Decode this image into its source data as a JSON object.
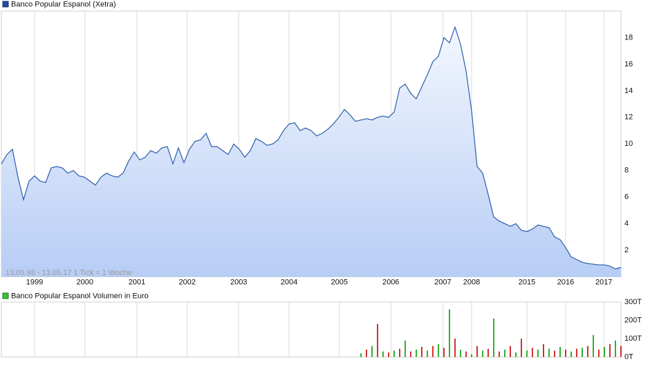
{
  "chart_data": [
    {
      "type": "area",
      "title": "Banco Popular Espanol (Xetra)",
      "annotation": "13.05.98 - 13.05.17   1 Tick = 1 Woche",
      "color": "#2a5caa",
      "xlim": [
        0,
        112
      ],
      "xticks": [
        {
          "value": 6,
          "label": "1999"
        },
        {
          "value": 15.1,
          "label": "2000"
        },
        {
          "value": 24.5,
          "label": "2001"
        },
        {
          "value": 33.6,
          "label": "2002"
        },
        {
          "value": 42.9,
          "label": "2003"
        },
        {
          "value": 52,
          "label": "2004"
        },
        {
          "value": 61.1,
          "label": "2005"
        },
        {
          "value": 70.4,
          "label": "2006"
        },
        {
          "value": 79.8,
          "label": "2007"
        },
        {
          "value": 85,
          "label": "2008"
        },
        {
          "value": 95,
          "label": "2015"
        },
        {
          "value": 102,
          "label": "2016"
        },
        {
          "value": 108.9,
          "label": "2017"
        }
      ],
      "ylim": [
        0,
        20
      ],
      "yticks": [
        2,
        4,
        6,
        8,
        10,
        12,
        14,
        16,
        18
      ],
      "grid": true,
      "values": [
        8.5,
        9.2,
        9.6,
        7.5,
        5.8,
        7.2,
        7.6,
        7.2,
        7.1,
        8.2,
        8.3,
        8.2,
        7.8,
        8.0,
        7.6,
        7.5,
        7.2,
        6.9,
        7.5,
        7.8,
        7.6,
        7.5,
        7.8,
        8.7,
        9.4,
        8.8,
        9.0,
        9.5,
        9.3,
        9.7,
        9.8,
        8.5,
        9.7,
        8.6,
        9.6,
        10.2,
        10.3,
        10.8,
        9.8,
        9.8,
        9.5,
        9.2,
        10.0,
        9.6,
        9.0,
        9.5,
        10.4,
        10.2,
        9.9,
        10.0,
        10.3,
        11.0,
        11.5,
        11.6,
        11.0,
        11.2,
        11.0,
        10.6,
        10.8,
        11.1,
        11.5,
        12.0,
        12.6,
        12.2,
        11.7,
        11.8,
        11.9,
        11.8,
        12.0,
        12.1,
        12.0,
        12.4,
        14.2,
        14.5,
        13.8,
        13.4,
        14.3,
        15.2,
        16.2,
        16.6,
        18.0,
        17.6,
        18.8,
        17.5,
        15.5,
        12.5,
        8.3,
        7.8,
        6.2,
        4.5,
        4.2,
        4.0,
        3.8,
        4.0,
        3.5,
        3.4,
        3.6,
        3.9,
        3.8,
        3.7,
        3.0,
        2.8,
        2.2,
        1.5,
        1.3,
        1.1,
        1.0,
        0.95,
        0.9,
        0.9,
        0.8,
        0.6,
        0.7
      ]
    },
    {
      "type": "bar",
      "title": "Banco Popular Espanol Volumen in Euro",
      "colors": [
        "#d03030",
        "#30b030"
      ],
      "xlim": [
        0,
        112
      ],
      "ylim": [
        0,
        300
      ],
      "yticks": [
        {
          "value": 0,
          "label": "0T"
        },
        {
          "value": 100,
          "label": "100T"
        },
        {
          "value": 200,
          "label": "200T"
        },
        {
          "value": 300,
          "label": "300T"
        }
      ],
      "grid": true,
      "values": [
        0,
        0,
        0,
        0,
        0,
        0,
        0,
        0,
        0,
        0,
        0,
        0,
        0,
        0,
        0,
        0,
        0,
        0,
        0,
        0,
        0,
        0,
        0,
        0,
        0,
        0,
        0,
        0,
        0,
        0,
        0,
        0,
        0,
        0,
        0,
        0,
        0,
        0,
        0,
        0,
        0,
        0,
        0,
        0,
        0,
        0,
        0,
        0,
        0,
        0,
        0,
        0,
        0,
        0,
        0,
        0,
        0,
        0,
        0,
        0,
        0,
        0,
        0,
        0,
        0,
        20,
        40,
        60,
        180,
        30,
        25,
        35,
        45,
        90,
        30,
        40,
        55,
        35,
        60,
        70,
        50,
        260,
        100,
        40,
        30,
        15,
        60,
        35,
        45,
        210,
        30,
        40,
        60,
        25,
        100,
        35,
        50,
        40,
        70,
        45,
        35,
        55,
        40,
        30,
        45,
        50,
        60,
        120,
        40,
        55,
        70,
        90,
        60
      ]
    }
  ]
}
